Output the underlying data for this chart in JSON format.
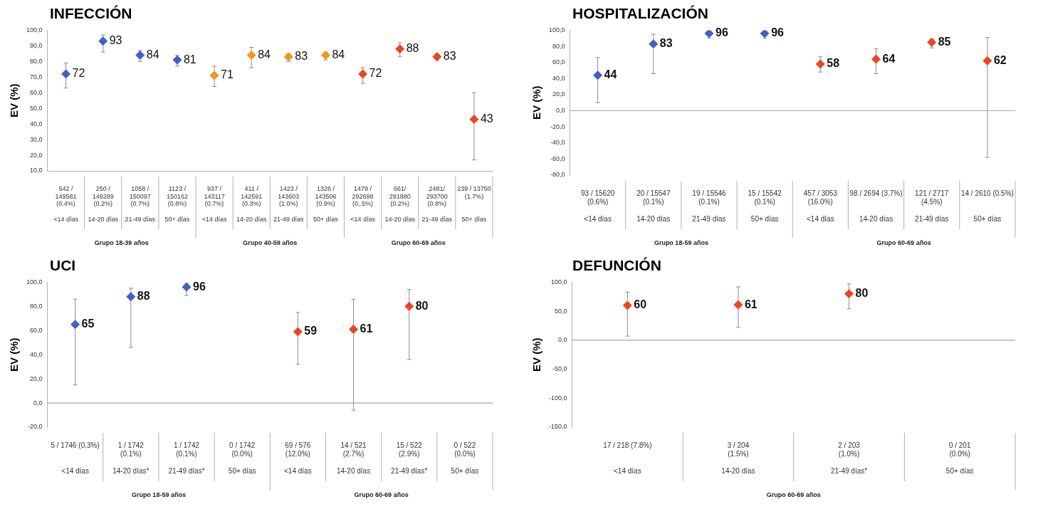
{
  "chart_data": [
    {
      "type": "scatter",
      "title": "INFECCIÓN",
      "ylabel": "EV (%)",
      "marker": "diamond",
      "data_labels": true,
      "legend": false,
      "categories": [
        "542 /\n149581\n(0.4%)\n\n<14 días",
        "250 /\n149289\n(0.2%)\n\n14-20 días",
        "1058 /\n150097\n(0.7%)\n\n21-49 días",
        "1123 /\n150162\n(0.8%)\n\n50+ días",
        "937 /\n143117\n(0.7%)\n\n<14 días",
        "411 /\n142591\n(0.3%)\n\n14-20 días",
        "1423 /\n143603\n(1.0%)\n\n21-49 días",
        "1326 /\n143506\n(0.9%)\n\n50+ días",
        "1479 /\n292698\n(0,.5%)\n\n<14 días",
        "661/\n291880\n(0.2%)\n\n14-20 días",
        "2481/\n293700\n(0.8%)\n\n21-49 días",
        "239 / 13750\n(1.7%)\n\n\n50+ días"
      ],
      "values": [
        72,
        93,
        84,
        81,
        71,
        84,
        83,
        84,
        72,
        88,
        83,
        43
      ],
      "errors": [
        [
          63,
          79
        ],
        [
          86,
          97
        ],
        [
          80,
          87
        ],
        [
          77,
          84
        ],
        [
          64,
          77
        ],
        [
          76,
          89
        ],
        [
          80,
          85
        ],
        [
          81,
          86
        ],
        [
          66,
          76
        ],
        [
          83,
          92
        ],
        [
          81,
          85
        ],
        [
          17,
          60
        ]
      ],
      "colors": [
        "#4060c8",
        "#4060c8",
        "#4060c8",
        "#4060c8",
        "#f7941d",
        "#f7941d",
        "#f7941d",
        "#f7941d",
        "#ee4422",
        "#ee4422",
        "#ee4422",
        "#ee4422"
      ],
      "ylim": [
        10,
        100
      ],
      "yticks": [
        {
          "value": 10,
          "label": "10,0"
        },
        {
          "value": 20,
          "label": "20,0"
        },
        {
          "value": 30,
          "label": "30,0"
        },
        {
          "value": 40,
          "label": "40,0"
        },
        {
          "value": 50,
          "label": "50,0"
        },
        {
          "value": 60,
          "label": "60,0"
        },
        {
          "value": 70,
          "label": "70,0"
        },
        {
          "value": 80,
          "label": "80,0"
        },
        {
          "value": 90,
          "label": "90,0"
        },
        {
          "value": 100,
          "label": "100,0"
        }
      ],
      "annotations": [
        "Grupo 18-39 años",
        "Grupo 40-59 años",
        "Grupo 60-69 años"
      ]
    },
    {
      "type": "scatter",
      "title": "HOSPITALIZACIÓN",
      "ylabel": "EV (%)",
      "marker": "diamond",
      "data_labels": true,
      "legend": false,
      "categories": [
        "93 / 15620\n(0.6%)\n\n<14 días",
        "20 / 15547\n(0.1%)\n\n14-20 días",
        "19 / 15546\n(0.1%)\n\n21-49 días",
        "15 / 15542\n(0.1%)\n\n50+ días",
        "457 / 3053\n(16.0%)\n\n<14 días",
        "98 / 2694 (3.7%)\n\n\n14-20 días",
        "121 / 2717\n(4.5%)\n\n21-49 días",
        "14 / 2610 (0.5%)\n\n\n50+ días"
      ],
      "values": [
        44,
        83,
        96,
        96,
        58,
        64,
        85,
        62
      ],
      "errors": [
        [
          10,
          66
        ],
        [
          46,
          95
        ],
        [
          90,
          99
        ],
        [
          90,
          99
        ],
        [
          48,
          67
        ],
        [
          46,
          77
        ],
        [
          78,
          89
        ],
        [
          -58,
          91
        ]
      ],
      "colors": [
        "#4060c8",
        "#4060c8",
        "#4060c8",
        "#4060c8",
        "#ee4422",
        "#ee4422",
        "#ee4422",
        "#ee4422"
      ],
      "ylim": [
        -80,
        100
      ],
      "yticks": [
        {
          "value": -80,
          "label": "-80,0"
        },
        {
          "value": -60,
          "label": "-60,0"
        },
        {
          "value": -40,
          "label": "-40,0"
        },
        {
          "value": -20,
          "label": "-20,0"
        },
        {
          "value": 0,
          "label": "0,0"
        },
        {
          "value": 20,
          "label": "20,0"
        },
        {
          "value": 40,
          "label": "40,0"
        },
        {
          "value": 60,
          "label": "60,0"
        },
        {
          "value": 80,
          "label": "80,0"
        },
        {
          "value": 100,
          "label": "100,0"
        }
      ],
      "ref_lines": [
        {
          "axis": "y",
          "value": 0,
          "color": "#a6a6a6"
        }
      ],
      "annotations": [
        "Grupo 18-59 años",
        "Grupo 60-69 años"
      ]
    },
    {
      "type": "scatter",
      "title": "UCI",
      "ylabel": "EV (%)",
      "marker": "diamond",
      "data_labels": true,
      "legend": false,
      "categories": [
        "5 / 1746 (0.3%)\n\n\n<14 días",
        "1 / 1742\n(0.1%)\n\n14-20 días*",
        "1 / 1742\n(0.1%)\n\n21-49 días*",
        "0 / 1742\n(0.0%)\n\n50+ días",
        "69 / 576\n(12.0%)\n\n<14 días",
        "14 / 521\n(2.7%)\n\n14-20 días",
        "15 / 522\n(2.9%)\n\n21-49 días*",
        "0 / 522\n(0.0%)\n\n50+ días"
      ],
      "values": [
        65,
        88,
        96,
        null,
        59,
        61,
        80,
        null
      ],
      "errors": [
        [
          15,
          86
        ],
        [
          46,
          95
        ],
        [
          89,
          99
        ],
        null,
        [
          32,
          75
        ],
        [
          -6,
          86
        ],
        [
          36,
          94
        ],
        null
      ],
      "colors": [
        "#4060c8",
        "#4060c8",
        "#4060c8",
        "#4060c8",
        "#ee4422",
        "#ee4422",
        "#ee4422",
        "#ee4422"
      ],
      "ylim": [
        -20,
        100
      ],
      "yticks": [
        {
          "value": -20,
          "label": "-20,0"
        },
        {
          "value": 0,
          "label": "0,0"
        },
        {
          "value": 20,
          "label": "20,0"
        },
        {
          "value": 40,
          "label": "40,0"
        },
        {
          "value": 60,
          "label": "60,0"
        },
        {
          "value": 80,
          "label": "80,0"
        },
        {
          "value": 100,
          "label": "100,0"
        }
      ],
      "ref_lines": [
        {
          "axis": "y",
          "value": 0,
          "color": "#a6a6a6"
        }
      ],
      "annotations": [
        "Grupo 18-59 años",
        "Grupo 60-69 años"
      ]
    },
    {
      "type": "scatter",
      "title": "DEFUNCIÓN",
      "ylabel": "EV (%)",
      "marker": "diamond",
      "data_labels": true,
      "legend": false,
      "categories": [
        "17 / 218 (7.8%)\n\n\n<14 días",
        "3 / 204\n(1.5%)\n\n14-20 días",
        "2 / 203\n(1.0%)\n\n21-49 días*",
        "0 / 201\n(0.0%)\n\n50+ días"
      ],
      "values": [
        60,
        61,
        80,
        null
      ],
      "errors": [
        [
          7,
          83
        ],
        [
          22,
          92
        ],
        [
          54,
          97
        ],
        null
      ],
      "colors": [
        "#ee4422",
        "#ee4422",
        "#ee4422",
        "#ee4422"
      ],
      "ylim": [
        -150,
        100
      ],
      "yticks": [
        {
          "value": -150,
          "label": "-150,0"
        },
        {
          "value": -100,
          "label": "-100,0"
        },
        {
          "value": -50,
          "label": "-50,0"
        },
        {
          "value": 0,
          "label": "0,0"
        },
        {
          "value": 50,
          "label": "50,0"
        },
        {
          "value": 100,
          "label": "100,0"
        }
      ],
      "ref_lines": [
        {
          "axis": "y",
          "value": 0,
          "color": "#a6a6a6"
        }
      ],
      "annotations": [
        "Grupo 60-69 años"
      ]
    }
  ]
}
